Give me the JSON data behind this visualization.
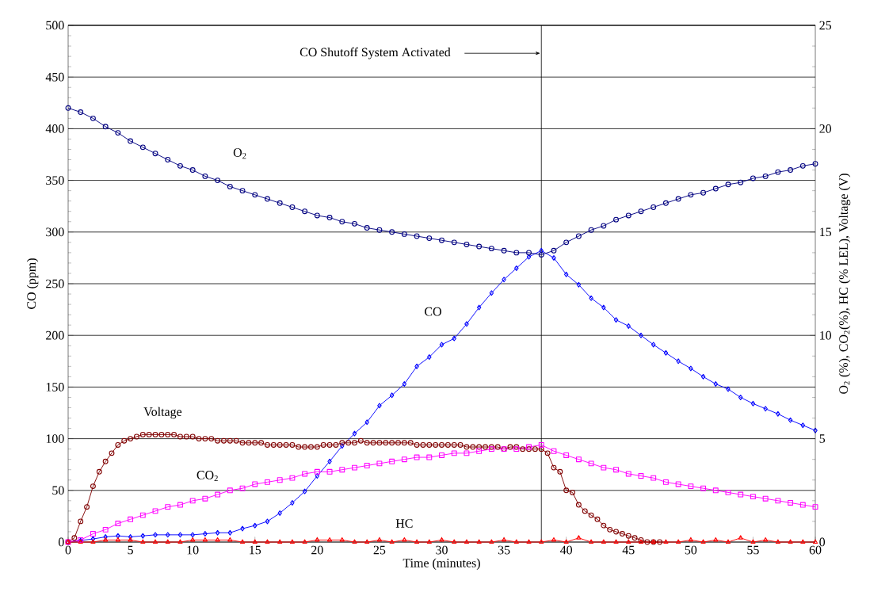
{
  "chart_data": {
    "type": "line",
    "xlabel": "Time (minutes)",
    "ylabel": "CO (ppm)",
    "y2label": "O$_{2}$ (%), CO$_{2}$(%), HC (% LEL), Voltage (V)",
    "x": [
      0,
      1,
      2,
      3,
      4,
      5,
      6,
      7,
      8,
      9,
      10,
      11,
      12,
      13,
      14,
      15,
      16,
      17,
      18,
      19,
      20,
      21,
      22,
      23,
      24,
      25,
      26,
      27,
      28,
      29,
      30,
      31,
      32,
      33,
      34,
      35,
      36,
      37,
      38,
      39,
      40,
      41,
      42,
      43,
      44,
      45,
      46,
      47,
      48,
      49,
      50,
      51,
      52,
      53,
      54,
      55,
      56,
      57,
      58,
      59,
      60
    ],
    "xlim": [
      0,
      60
    ],
    "xticks": [
      0,
      5,
      10,
      15,
      20,
      25,
      30,
      35,
      40,
      45,
      50,
      55,
      60
    ],
    "ylim": [
      0,
      500
    ],
    "yticks": [
      0,
      50,
      100,
      150,
      200,
      250,
      300,
      350,
      400,
      450,
      500
    ],
    "y2lim": [
      0,
      25
    ],
    "y2ticks": [
      0,
      5,
      10,
      15,
      20,
      25
    ],
    "grid": "y",
    "legend": false,
    "line_style": "solid",
    "ref_lines": [
      {
        "axis": "x",
        "value": 38,
        "label": "CO Shutoff System Activated"
      }
    ],
    "series": [
      {
        "name": "O$_{2}$",
        "color": "#000080",
        "axis": "y2",
        "marker": "circle",
        "values": [
          21.0,
          20.8,
          20.5,
          20.1,
          19.8,
          19.4,
          19.1,
          18.8,
          18.5,
          18.2,
          18.0,
          17.7,
          17.5,
          17.2,
          17.0,
          16.8,
          16.6,
          16.4,
          16.2,
          16.0,
          15.8,
          15.7,
          15.5,
          15.4,
          15.2,
          15.1,
          15.0,
          14.9,
          14.8,
          14.7,
          14.6,
          14.5,
          14.4,
          14.3,
          14.2,
          14.1,
          14.0,
          14.0,
          13.9,
          14.1,
          14.5,
          14.8,
          15.1,
          15.3,
          15.6,
          15.8,
          16.0,
          16.2,
          16.4,
          16.6,
          16.8,
          16.9,
          17.1,
          17.3,
          17.4,
          17.6,
          17.7,
          17.9,
          18.0,
          18.2,
          18.3
        ]
      },
      {
        "name": "CO",
        "color": "#0000ff",
        "axis": "y",
        "marker": "diamond",
        "values": [
          0,
          1.5,
          3,
          5,
          6,
          5,
          6,
          7,
          7,
          7,
          7,
          8,
          9,
          9,
          13,
          16,
          20,
          28,
          38,
          49,
          64,
          78,
          93,
          105,
          116,
          132,
          142,
          153,
          170,
          179,
          191,
          197,
          211,
          227,
          241,
          254,
          265,
          276,
          282,
          275,
          259,
          249,
          236,
          227,
          215,
          209,
          200,
          191,
          183,
          175,
          168,
          160,
          153,
          148,
          140,
          134,
          129,
          124,
          118,
          113,
          108
        ]
      },
      {
        "name": "Voltage",
        "color": "#800000",
        "axis": "y2",
        "marker": "circle",
        "x": [
          0,
          0.5,
          1,
          1.5,
          2,
          2.5,
          3,
          3.5,
          4,
          4.5,
          5,
          5.5,
          6,
          6.5,
          7,
          7.5,
          8,
          8.5,
          9,
          9.5,
          10,
          10.5,
          11,
          11.5,
          12,
          12.5,
          13,
          13.5,
          14,
          14.5,
          15,
          15.5,
          16,
          16.5,
          17,
          17.5,
          18,
          18.5,
          19,
          19.5,
          20,
          20.5,
          21,
          21.5,
          22,
          22.5,
          23,
          23.5,
          24,
          24.5,
          25,
          25.5,
          26,
          26.5,
          27,
          27.5,
          28,
          28.5,
          29,
          29.5,
          30,
          30.5,
          31,
          31.5,
          32,
          32.5,
          33,
          33.5,
          34,
          34.5,
          35,
          35.5,
          36,
          36.5,
          37,
          37.5,
          38,
          38.5,
          39,
          39.5,
          40,
          40.5,
          41,
          41.5,
          42,
          42.5,
          43,
          43.5,
          44,
          44.5,
          45,
          45.5,
          46,
          46.5,
          47,
          47.5
        ],
        "values": [
          0,
          0.2,
          1.0,
          1.7,
          2.7,
          3.4,
          3.9,
          4.3,
          4.7,
          4.9,
          5.0,
          5.1,
          5.2,
          5.2,
          5.2,
          5.2,
          5.2,
          5.2,
          5.1,
          5.1,
          5.1,
          5.0,
          5.0,
          5.0,
          4.9,
          4.9,
          4.9,
          4.9,
          4.8,
          4.8,
          4.8,
          4.8,
          4.7,
          4.7,
          4.7,
          4.7,
          4.7,
          4.6,
          4.6,
          4.6,
          4.6,
          4.7,
          4.7,
          4.7,
          4.8,
          4.8,
          4.8,
          4.9,
          4.8,
          4.8,
          4.8,
          4.8,
          4.8,
          4.8,
          4.8,
          4.8,
          4.7,
          4.7,
          4.7,
          4.7,
          4.7,
          4.7,
          4.7,
          4.7,
          4.6,
          4.6,
          4.6,
          4.6,
          4.6,
          4.6,
          4.5,
          4.6,
          4.6,
          4.5,
          4.5,
          4.5,
          4.5,
          4.3,
          3.6,
          3.4,
          2.5,
          2.4,
          1.8,
          1.5,
          1.3,
          1.1,
          0.8,
          0.6,
          0.5,
          0.4,
          0.3,
          0.2,
          0.1,
          0,
          0,
          0
        ]
      },
      {
        "name": "CO$_{2}$",
        "color": "#ff00ff",
        "axis": "y2",
        "marker": "square",
        "values": [
          0,
          0.1,
          0.4,
          0.6,
          0.9,
          1.1,
          1.3,
          1.5,
          1.7,
          1.8,
          2.0,
          2.1,
          2.3,
          2.5,
          2.6,
          2.8,
          2.9,
          3.0,
          3.1,
          3.3,
          3.4,
          3.4,
          3.5,
          3.6,
          3.7,
          3.8,
          3.9,
          4.0,
          4.1,
          4.1,
          4.2,
          4.3,
          4.3,
          4.4,
          4.5,
          4.5,
          4.5,
          4.6,
          4.7,
          4.4,
          4.2,
          4.0,
          3.8,
          3.6,
          3.5,
          3.3,
          3.2,
          3.1,
          2.9,
          2.8,
          2.7,
          2.6,
          2.5,
          2.4,
          2.3,
          2.2,
          2.1,
          2.0,
          1.9,
          1.8,
          1.7
        ]
      },
      {
        "name": "HC",
        "color": "#ff0000",
        "axis": "y2",
        "marker": "triangle",
        "values": [
          0,
          0,
          0,
          0.1,
          0.1,
          0.1,
          0,
          0,
          0,
          0,
          0.1,
          0.1,
          0.1,
          0.1,
          0,
          0,
          0,
          0,
          0,
          0,
          0.1,
          0.1,
          0.1,
          0,
          0,
          0.1,
          0,
          0.1,
          0,
          0,
          0.1,
          0,
          0,
          0,
          0,
          0.1,
          0,
          0,
          0,
          0.1,
          0,
          0.2,
          0,
          0,
          0,
          0,
          0,
          0,
          0,
          0,
          0.1,
          0,
          0.1,
          0,
          0.2,
          0,
          0.1,
          0,
          0,
          0,
          0
        ]
      }
    ]
  }
}
